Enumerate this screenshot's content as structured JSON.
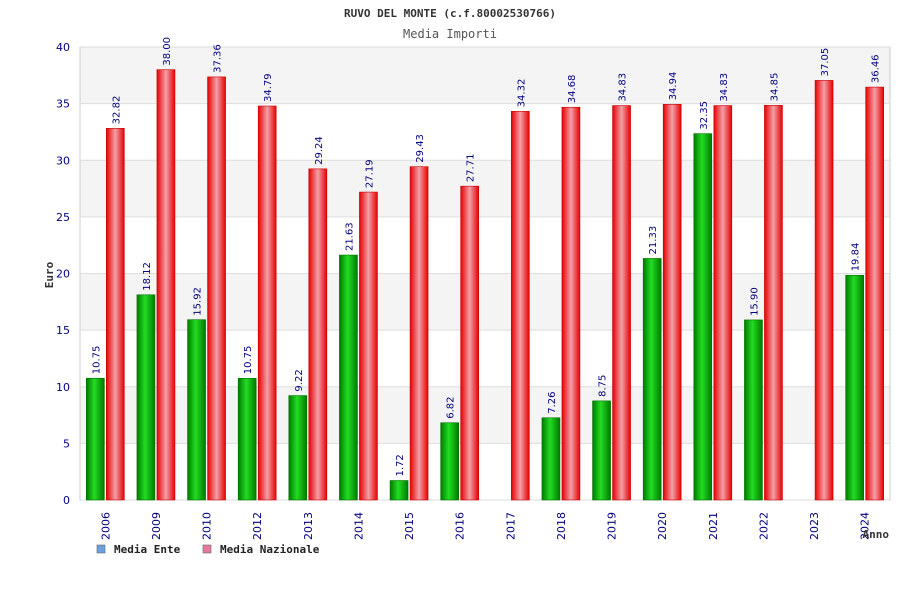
{
  "chart_data": {
    "type": "bar",
    "title": "RUVO DEL MONTE (c.f.80002530766)",
    "subtitle": "Media Importi",
    "ylabel": "Euro",
    "xlabel": "Anno",
    "ylim": [
      0,
      40
    ],
    "yticks": [
      "0",
      "5",
      "10",
      "15",
      "20",
      "25",
      "30",
      "35",
      "40"
    ],
    "grid": true,
    "legend_position": "bottom-left",
    "categories": [
      "2006",
      "2009",
      "2010",
      "2012",
      "2013",
      "2014",
      "2015",
      "2016",
      "2017",
      "2018",
      "2019",
      "2020",
      "2021",
      "2022",
      "2023",
      "2024"
    ],
    "series": [
      {
        "name": "Media Ente",
        "color": "#00aa00",
        "legend_color": "#6aa0e0",
        "values": [
          10.75,
          18.12,
          15.92,
          10.75,
          9.22,
          21.63,
          1.72,
          6.82,
          null,
          7.26,
          8.75,
          21.33,
          32.35,
          15.9,
          null,
          19.84
        ],
        "labels": [
          "10.75",
          "18.12",
          "15.92",
          "10.75",
          "9.22",
          "21.63",
          "1.72",
          "6.82",
          "",
          "7.26",
          "8.75",
          "21.33",
          "32.35",
          "15.90",
          "",
          "19.84"
        ]
      },
      {
        "name": "Media Nazionale",
        "color": "#ee1111",
        "legend_color": "#e07aa0",
        "values": [
          32.82,
          38.0,
          37.36,
          34.79,
          29.24,
          27.19,
          29.43,
          27.71,
          34.32,
          34.68,
          34.83,
          34.94,
          34.83,
          34.85,
          37.05,
          36.46
        ],
        "labels": [
          "32.82",
          "38.00",
          "37.36",
          "34.79",
          "29.24",
          "27.19",
          "29.43",
          "27.71",
          "34.32",
          "34.68",
          "34.83",
          "34.94",
          "34.83",
          "34.85",
          "37.05",
          "36.46"
        ]
      }
    ]
  }
}
